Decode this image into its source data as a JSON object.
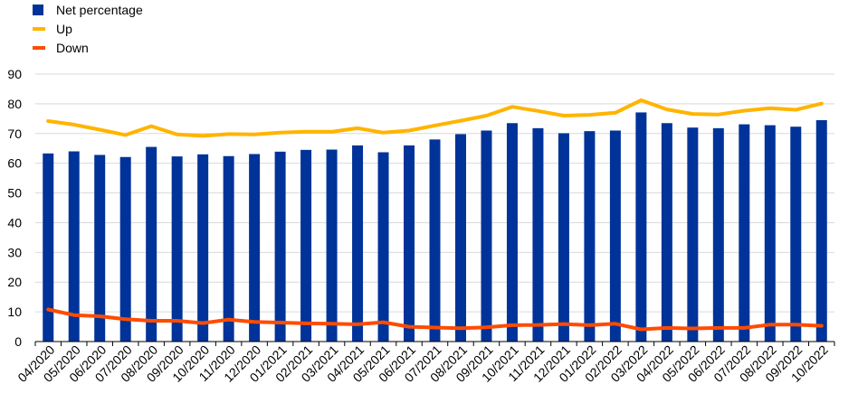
{
  "chart_data": {
    "type": "bar",
    "categories": [
      "04/2020",
      "05/2020",
      "06/2020",
      "07/2020",
      "08/2020",
      "09/2020",
      "10/2020",
      "11/2020",
      "12/2020",
      "01/2021",
      "02/2021",
      "03/2021",
      "04/2021",
      "05/2021",
      "06/2021",
      "07/2021",
      "08/2021",
      "09/2021",
      "10/2021",
      "11/2021",
      "12/2021",
      "01/2022",
      "02/2022",
      "03/2022",
      "04/2022",
      "05/2022",
      "06/2022",
      "07/2022",
      "08/2022",
      "09/2022",
      "10/2022"
    ],
    "series": [
      {
        "name": "Net percentage",
        "kind": "bar",
        "color": "#003399",
        "values": [
          63.3,
          64.0,
          62.8,
          62.1,
          65.5,
          62.3,
          63.0,
          62.4,
          63.1,
          63.9,
          64.5,
          64.6,
          66.0,
          63.7,
          66.0,
          68.0,
          69.8,
          71.0,
          73.5,
          71.8,
          70.1,
          70.8,
          71.0,
          77.1,
          73.5,
          72.0,
          71.8,
          73.1,
          72.8,
          72.3,
          74.5
        ]
      },
      {
        "name": "Up",
        "kind": "line",
        "color": "#FFB400",
        "values": [
          74.2,
          73.0,
          71.3,
          69.5,
          72.5,
          69.7,
          69.2,
          69.8,
          69.7,
          70.3,
          70.6,
          70.6,
          71.8,
          70.3,
          71.0,
          72.7,
          74.3,
          76.0,
          79.0,
          77.6,
          76.0,
          76.3,
          77.0,
          81.2,
          78.1,
          76.6,
          76.4,
          77.7,
          78.5,
          78.0,
          80.1
        ]
      },
      {
        "name": "Down",
        "kind": "line",
        "color": "#FF4B00",
        "values": [
          10.8,
          8.9,
          8.5,
          7.5,
          7.0,
          7.0,
          6.2,
          7.4,
          6.6,
          6.4,
          6.1,
          6.0,
          5.8,
          6.5,
          5.0,
          4.7,
          4.5,
          4.8,
          5.5,
          5.6,
          5.9,
          5.5,
          6.0,
          4.1,
          4.6,
          4.4,
          4.6,
          4.6,
          5.7,
          5.7,
          5.3
        ]
      }
    ],
    "ylim": [
      0,
      90
    ],
    "yticks": [
      0,
      10,
      20,
      30,
      40,
      50,
      60,
      70,
      80,
      90
    ],
    "grid": true,
    "legend_position": "top-left",
    "title": "",
    "xlabel": "",
    "ylabel": ""
  }
}
